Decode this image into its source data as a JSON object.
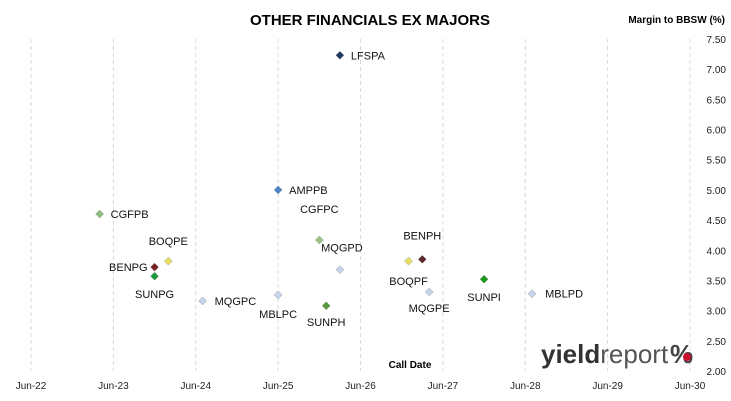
{
  "chart_data": {
    "type": "scatter",
    "title": "OTHER FINANCIALS EX MAJORS",
    "ylabel": "Margin to BBSW (%)",
    "xlabel": "Call Date",
    "x_ticks": [
      "Jun-22",
      "Jun-23",
      "Jun-24",
      "Jun-25",
      "Jun-26",
      "Jun-27",
      "Jun-28",
      "Jun-29",
      "Jun-30"
    ],
    "xlim": [
      "Jun-22",
      "Jun-30"
    ],
    "y_ticks": [
      "2.00",
      "2.50",
      "3.00",
      "3.50",
      "4.00",
      "4.50",
      "5.00",
      "5.50",
      "6.00",
      "6.50",
      "7.00",
      "7.50"
    ],
    "ylim": [
      2.0,
      7.5
    ],
    "grid": "vertical dashed",
    "marker": "diamond",
    "points": [
      {
        "name": "LFSPA",
        "x": "2026-04",
        "y": 7.23,
        "color": "#1f3864"
      },
      {
        "name": "AMPPB",
        "x": "2025-07",
        "y": 5.0,
        "color": "#4a86c8"
      },
      {
        "name": "CGFPB",
        "x": "2023-05",
        "y": 4.6,
        "color": "#8fbc7f"
      },
      {
        "name": "CGFPC",
        "x": "2026-01",
        "y": 4.17,
        "color": "#9cc48a"
      },
      {
        "name": "BENPH",
        "x": "2027-04",
        "y": 3.85,
        "color": "#5a2a2a"
      },
      {
        "name": "BOQPF",
        "x": "2027-02",
        "y": 3.82,
        "color": "#e8e060"
      },
      {
        "name": "BOQPE",
        "x": "2024-03",
        "y": 3.82,
        "color": "#e8e060"
      },
      {
        "name": "MQGPD",
        "x": "2026-04",
        "y": 3.68,
        "color": "#c5d5ee"
      },
      {
        "name": "BENPG",
        "x": "2024-01",
        "y": 3.72,
        "color": "#7a2020"
      },
      {
        "name": "SUNPG",
        "x": "2024-01",
        "y": 3.57,
        "color": "#1a9a3a"
      },
      {
        "name": "SUNPI",
        "x": "2028-01",
        "y": 3.52,
        "color": "#1a9a1a"
      },
      {
        "name": "MBLPD",
        "x": "2028-08",
        "y": 3.28,
        "color": "#c5d5ee"
      },
      {
        "name": "MQGPE",
        "x": "2027-05",
        "y": 3.31,
        "color": "#c5d5ee"
      },
      {
        "name": "MQGPC",
        "x": "2024-08",
        "y": 3.16,
        "color": "#c5d5ee"
      },
      {
        "name": "MBLPC",
        "x": "2025-07",
        "y": 3.26,
        "color": "#c5d5ee"
      },
      {
        "name": "SUNPH",
        "x": "2026-02",
        "y": 3.08,
        "color": "#5a9a3a"
      }
    ]
  },
  "logo": {
    "bold": "yield",
    "light": "report",
    "symbol": "%"
  }
}
